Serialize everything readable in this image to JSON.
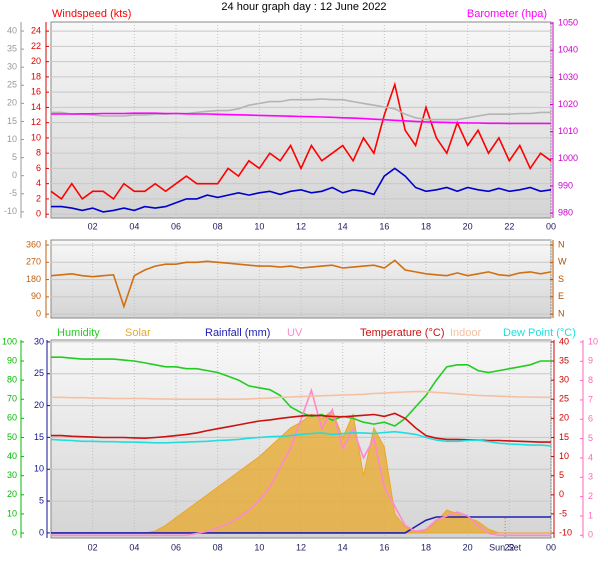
{
  "chart_data": [
    {
      "type": "line",
      "title": "24 hour graph day : 12 June 2022",
      "x": [
        0,
        0.5,
        1,
        1.5,
        2,
        2.5,
        3,
        3.5,
        4,
        4.5,
        5,
        5.5,
        6,
        6.5,
        7,
        7.5,
        8,
        8.5,
        9,
        9.5,
        10,
        10.5,
        11,
        11.5,
        12,
        12.5,
        13,
        13.5,
        14,
        14.5,
        15,
        15.5,
        16,
        16.5,
        17,
        17.5,
        18,
        18.5,
        19,
        19.5,
        20,
        20.5,
        21,
        21.5,
        22,
        22.5,
        23,
        23.5,
        24
      ],
      "xlim": [
        0,
        24
      ],
      "xticks": [
        {
          "value": 2,
          "label": "02"
        },
        {
          "value": 4,
          "label": "04"
        },
        {
          "value": 6,
          "label": "06"
        },
        {
          "value": 8,
          "label": "08"
        },
        10,
        12,
        14,
        16,
        18,
        20,
        22,
        {
          "value": 24,
          "label": "00"
        }
      ],
      "ylim": [
        -0.5,
        25.2
      ],
      "yticks": [
        0,
        2,
        4,
        6,
        8,
        10,
        12,
        14,
        16,
        18,
        20,
        22,
        24
      ],
      "ycolor": "#dd0000",
      "y2lim": [
        978.2,
        1050.4
      ],
      "y2ticks": [
        980,
        990,
        1000,
        1010,
        1020,
        1030,
        1040,
        1050
      ],
      "y2color": "#cc00cc",
      "y3lim": [
        -11.7,
        42.5
      ],
      "y3ticks": [
        -10,
        -5,
        0,
        5,
        10,
        15,
        20,
        25,
        30,
        35,
        40
      ],
      "y3color": "#999999",
      "grid": "y",
      "series": [
        {
          "name": "Windspeed (kts)",
          "color": "#ff0000",
          "axis": "y",
          "values": [
            3,
            2,
            4,
            2,
            3,
            3,
            2,
            4,
            3,
            3,
            4,
            3,
            4,
            5,
            4,
            4,
            4,
            6,
            5,
            7,
            6,
            8,
            7,
            9,
            6,
            9,
            7,
            8,
            9,
            7,
            10,
            8,
            13,
            17,
            11,
            9,
            14,
            10,
            8,
            12,
            9,
            11,
            8,
            10,
            7,
            9,
            6,
            8,
            7
          ]
        },
        {
          "color": "#0000cc",
          "axis": "y",
          "values": [
            1,
            1,
            0.8,
            0.5,
            0.8,
            0.3,
            0.5,
            0.8,
            0.5,
            1,
            0.8,
            1,
            1.5,
            2,
            2,
            2.5,
            2.2,
            2.5,
            2.8,
            2.5,
            2.8,
            3,
            2.6,
            3,
            3.2,
            2.8,
            3,
            3.5,
            2.8,
            3.2,
            3,
            2.6,
            5,
            6,
            5,
            3.5,
            3,
            3.2,
            3.5,
            3,
            3.5,
            3.2,
            3,
            3.4,
            3,
            3.2,
            3.5,
            3,
            3.2
          ]
        },
        {
          "color": "#b4b4b4",
          "axis": "y3",
          "values": [
            17.5,
            17.5,
            17,
            17,
            16.8,
            16.5,
            16.5,
            16.5,
            16.8,
            16.8,
            17,
            17,
            17.2,
            17.2,
            17.5,
            17.8,
            18,
            18,
            18.5,
            19.5,
            20,
            20.5,
            20.5,
            21,
            21,
            21,
            21.2,
            21,
            21,
            20.5,
            20,
            19.5,
            19,
            18.5,
            17,
            16,
            15.5,
            15.5,
            15.5,
            15.5,
            16,
            16.5,
            17,
            17,
            17,
            17.2,
            17.2,
            17.5,
            17.5
          ]
        },
        {
          "name": "Barometer (hpa)",
          "color": "#ff00ff",
          "axis": "y2",
          "values": [
            1016.5,
            1016.5,
            1016.5,
            1016.6,
            1016.6,
            1016.7,
            1016.7,
            1016.7,
            1016.8,
            1016.8,
            1016.8,
            1016.7,
            1016.7,
            1016.6,
            1016.5,
            1016.5,
            1016.4,
            1016.3,
            1016.2,
            1016.1,
            1016,
            1015.9,
            1015.8,
            1015.7,
            1015.6,
            1015.5,
            1015.4,
            1015.3,
            1015.1,
            1015,
            1014.8,
            1014.6,
            1014.4,
            1014.2,
            1014,
            1013.8,
            1013.6,
            1013.5,
            1013.4,
            1013.3,
            1013.2,
            1013.2,
            1013.1,
            1013.1,
            1013,
            1013,
            1013,
            1013,
            1013
          ]
        }
      ]
    },
    {
      "type": "line",
      "x": [
        0,
        0.5,
        1,
        1.5,
        2,
        2.5,
        3,
        3.5,
        4,
        4.5,
        5,
        5.5,
        6,
        6.5,
        7,
        7.5,
        8,
        8.5,
        9,
        9.5,
        10,
        10.5,
        11,
        11.5,
        12,
        12.5,
        13,
        13.5,
        14,
        14.5,
        15,
        15.5,
        16,
        16.5,
        17,
        17.5,
        18,
        18.5,
        19,
        19.5,
        20,
        20.5,
        21,
        21.5,
        22,
        22.5,
        23,
        23.5,
        24
      ],
      "xlim": [
        0,
        24
      ],
      "ylim": [
        -20,
        386
      ],
      "yticks": [
        0,
        90,
        180,
        270,
        360
      ],
      "ycolor": "#c06010",
      "y2lim": [
        -20,
        386
      ],
      "y2ticks": [
        {
          "value": 0,
          "label": "N"
        },
        {
          "value": 90,
          "label": "E"
        },
        {
          "value": 180,
          "label": "S"
        },
        {
          "value": 270,
          "label": "W"
        },
        {
          "value": 360,
          "label": "N"
        }
      ],
      "y2color": "#b05000",
      "grid": "y",
      "series": [
        {
          "color": "#d07010",
          "axis": "y",
          "values": [
            200,
            205,
            210,
            200,
            195,
            200,
            205,
            40,
            200,
            230,
            250,
            260,
            260,
            270,
            270,
            275,
            270,
            265,
            260,
            255,
            250,
            250,
            245,
            250,
            240,
            245,
            250,
            255,
            240,
            245,
            250,
            255,
            240,
            280,
            230,
            220,
            210,
            205,
            200,
            215,
            200,
            210,
            220,
            205,
            200,
            215,
            220,
            210,
            220
          ]
        }
      ]
    },
    {
      "type": "line",
      "x": [
        0,
        0.5,
        1,
        1.5,
        2,
        2.5,
        3,
        3.5,
        4,
        4.5,
        5,
        5.5,
        6,
        6.5,
        7,
        7.5,
        8,
        8.5,
        9,
        9.5,
        10,
        10.5,
        11,
        11.5,
        12,
        12.5,
        13,
        13.5,
        14,
        14.5,
        15,
        15.5,
        16,
        16.5,
        17,
        17.5,
        18,
        18.5,
        19,
        19.5,
        20,
        20.5,
        21,
        21.5,
        22,
        22.5,
        23,
        23.5,
        24
      ],
      "xlim": [
        0,
        24
      ],
      "xticks": [
        {
          "value": 2,
          "label": "02"
        },
        {
          "value": 4,
          "label": "04"
        },
        {
          "value": 6,
          "label": "06"
        },
        {
          "value": 8,
          "label": "08"
        },
        10,
        12,
        14,
        16,
        18,
        20,
        22,
        {
          "value": 24,
          "label": "00"
        }
      ],
      "ylim": [
        -2.6,
        101
      ],
      "yticks": [
        0,
        10,
        20,
        30,
        40,
        50,
        60,
        70,
        80,
        90,
        100
      ],
      "ycolor": "#00bb00",
      "y2lim": [
        -11.3,
        40.5
      ],
      "y2ticks": [
        -10,
        -5,
        0,
        5,
        10,
        15,
        20,
        25,
        30,
        35,
        40
      ],
      "y2color": "#cc0000",
      "y3lim": [
        -0.8,
        30.3
      ],
      "y3ticks": [
        0,
        5,
        10,
        15,
        20,
        25,
        30
      ],
      "y3color": "#101090",
      "y4lim": [
        -0.14,
        10.1
      ],
      "y4ticks": [
        0,
        1,
        2,
        3,
        4,
        5,
        6,
        7,
        8,
        9,
        10
      ],
      "y4color": "#ff66bb",
      "grid": "y3",
      "annotations": [
        {
          "text": "Sun Set",
          "x": 21.8
        }
      ],
      "series": [
        {
          "name": "Humidity",
          "color": "#22cc22",
          "axis": "y",
          "values": [
            92,
            92,
            91.5,
            91,
            91,
            91,
            91,
            90.5,
            90,
            89,
            88,
            87,
            87,
            86,
            86,
            85,
            84,
            82,
            80,
            77,
            76,
            75,
            72,
            66,
            63,
            61,
            62,
            59,
            61,
            60,
            58,
            57,
            58,
            56,
            60,
            66,
            72,
            80,
            87,
            88,
            88,
            85,
            84,
            85,
            86,
            87,
            88,
            90,
            90
          ]
        },
        {
          "name": "Solar",
          "color": "#e8a828",
          "axis": "y",
          "fill": true,
          "values": [
            0,
            0,
            0,
            0,
            0,
            0,
            0,
            0,
            0,
            0,
            1,
            4,
            8,
            12,
            16,
            20,
            24,
            28,
            32,
            36,
            40,
            45,
            50,
            55,
            58,
            62,
            60,
            64,
            50,
            62,
            30,
            55,
            45,
            10,
            3,
            1,
            1,
            6,
            12,
            10,
            8,
            6,
            2,
            0,
            0,
            0,
            0,
            0,
            0
          ]
        },
        {
          "name": "Rainfall (mm)",
          "color": "#2020b0",
          "axis": "y3",
          "values": [
            0,
            0,
            0,
            0,
            0,
            0,
            0,
            0,
            0,
            0,
            0,
            0,
            0,
            0,
            0,
            0,
            0,
            0,
            0,
            0,
            0,
            0,
            0,
            0,
            0,
            0,
            0,
            0,
            0,
            0,
            0,
            0,
            0,
            0,
            0,
            1,
            2,
            2.5,
            2.5,
            2.5,
            2.5,
            2.5,
            2.5,
            2.5,
            2.5,
            2.5,
            2.5,
            2.5,
            2.5
          ]
        },
        {
          "name": "UV",
          "color": "#ff88cc",
          "axis": "y4",
          "values": [
            0,
            0,
            0,
            0,
            0,
            0,
            0,
            0,
            0,
            0,
            0,
            0,
            0,
            0,
            0.1,
            0.2,
            0.4,
            0.6,
            0.9,
            1.3,
            1.8,
            2.5,
            3.5,
            4.5,
            6,
            7.5,
            5.5,
            6.5,
            4.5,
            5.5,
            4,
            5,
            2.5,
            1.5,
            0.5,
            0.2,
            0.3,
            0.8,
            1,
            1.2,
            1,
            0.5,
            0.1,
            0,
            0,
            0,
            0,
            0,
            0
          ]
        },
        {
          "name": "Temperature (°C)",
          "color": "#cc1111",
          "axis": "y2",
          "values": [
            15.5,
            15.5,
            15.3,
            15.2,
            15.1,
            15,
            15,
            15,
            14.9,
            14.8,
            15,
            15.2,
            15.5,
            15.8,
            16.2,
            16.8,
            17.3,
            17.8,
            18.3,
            18.8,
            19.3,
            19.6,
            20,
            20.3,
            20.6,
            20.8,
            20.7,
            20.5,
            20.4,
            20.6,
            20.8,
            21,
            20.5,
            21.3,
            20,
            17.5,
            15.5,
            14.8,
            14.5,
            14.5,
            14.4,
            14.3,
            14.2,
            14.2,
            14.1,
            14,
            13.9,
            13.8,
            13.8
          ]
        },
        {
          "name": "Indoor",
          "color": "#f4c0a0",
          "axis": "y2",
          "values": [
            25.5,
            25.5,
            25.4,
            25.4,
            25.3,
            25.3,
            25.2,
            25.2,
            25.2,
            25.2,
            25.1,
            25.1,
            25,
            25,
            25,
            25,
            25,
            25,
            25,
            25.1,
            25.2,
            25.3,
            25.5,
            25.6,
            25.7,
            25.8,
            25.9,
            26,
            26.1,
            26.2,
            26.3,
            26.5,
            26.6,
            26.8,
            26.9,
            27,
            27,
            26.8,
            26.6,
            26.4,
            26.2,
            26,
            25.9,
            25.8,
            25.7,
            25.6,
            25.6,
            25.5,
            25.5
          ]
        },
        {
          "name": "Dew Point (°C)",
          "color": "#22dddd",
          "axis": "y2",
          "values": [
            14.5,
            14.3,
            14.2,
            14,
            14,
            13.9,
            13.9,
            13.8,
            13.8,
            13.7,
            13.6,
            13.6,
            13.7,
            13.8,
            13.9,
            14,
            14.2,
            14.3,
            14.5,
            14.8,
            15,
            15.2,
            15.3,
            15.5,
            15.8,
            16,
            16.2,
            15.8,
            16,
            16.2,
            16.2,
            16,
            16.3,
            16.5,
            16.2,
            15.8,
            15,
            14.3,
            14,
            14,
            14.2,
            14.3,
            13.9,
            13.5,
            13.3,
            13.2,
            13,
            13,
            12.8
          ]
        }
      ]
    }
  ]
}
